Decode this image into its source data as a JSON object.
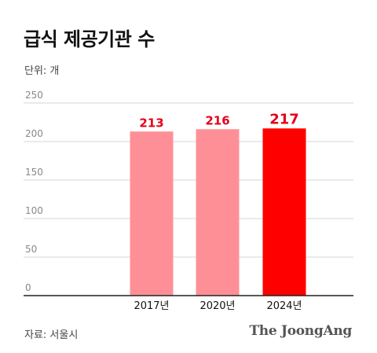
{
  "header": {
    "title": "급식 제공기관 수",
    "unit": "단위: 개"
  },
  "footer": {
    "source": "자료: 서울시",
    "brand": "The JoongAng"
  },
  "colors": {
    "bar_light": "#ff8f97",
    "bar_highlight": "#ff0000",
    "label_red": "#e3001b",
    "grid": "#d4d4d4",
    "axis": "#222222"
  },
  "chart_data": {
    "type": "bar",
    "categories": [
      "2017년",
      "2020년",
      "2024년"
    ],
    "values": [
      213,
      216,
      217
    ],
    "data_labels": [
      "213",
      "216",
      "217"
    ],
    "highlight_index": 2,
    "ylim": [
      0,
      250
    ],
    "yticks": [
      0,
      50,
      100,
      150,
      200,
      250
    ],
    "ytick_labels": [
      "0",
      "50",
      "100",
      "150",
      "200",
      "250"
    ],
    "grid": true,
    "title": "급식 제공기관 수",
    "xlabel": "",
    "ylabel": ""
  }
}
